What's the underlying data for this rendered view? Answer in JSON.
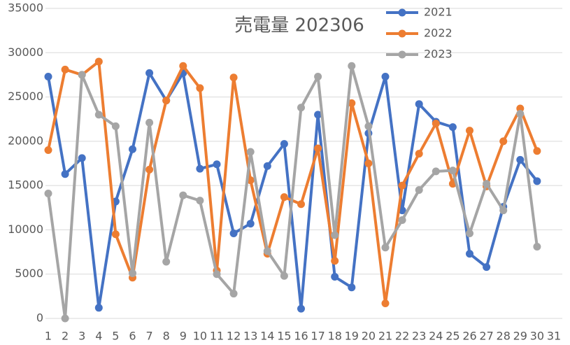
{
  "chart_data": {
    "type": "line",
    "title": "売電量 202306",
    "categories": [
      "1",
      "2",
      "3",
      "4",
      "5",
      "6",
      "7",
      "8",
      "9",
      "10",
      "11",
      "12",
      "13",
      "14",
      "15",
      "16",
      "17",
      "18",
      "19",
      "20",
      "21",
      "22",
      "23",
      "24",
      "25",
      "26",
      "27",
      "28",
      "29",
      "30",
      "31"
    ],
    "series": [
      {
        "name": "2021",
        "color": "#4472c4",
        "values": [
          27300,
          16300,
          18100,
          1200,
          13200,
          19100,
          27700,
          24600,
          27700,
          16900,
          17400,
          9600,
          10700,
          17200,
          19700,
          1100,
          23000,
          4700,
          3500,
          20900,
          27300,
          12200,
          24200,
          22200,
          21600,
          7300,
          5800,
          12600,
          17900,
          15500,
          null
        ]
      },
      {
        "name": "2022",
        "color": "#ed7d31",
        "values": [
          19000,
          28100,
          27500,
          29000,
          9500,
          4600,
          16800,
          24600,
          28500,
          26000,
          5400,
          27200,
          15600,
          7300,
          13700,
          12900,
          19200,
          6500,
          24300,
          17500,
          1700,
          15000,
          18600,
          22000,
          15200,
          21200,
          14900,
          20000,
          23700,
          18900,
          null
        ]
      },
      {
        "name": "2023",
        "color": "#a5a5a5",
        "values": [
          14100,
          0,
          27500,
          23000,
          21700,
          5100,
          22100,
          6400,
          13900,
          13300,
          5000,
          2800,
          18800,
          7600,
          4800,
          23800,
          27300,
          9400,
          28500,
          21700,
          8000,
          11100,
          14500,
          16600,
          16700,
          9600,
          15200,
          12200,
          23100,
          8100,
          null
        ]
      }
    ],
    "ylim": [
      0,
      35000
    ],
    "yticks": [
      0,
      5000,
      10000,
      15000,
      20000,
      25000,
      30000,
      35000
    ],
    "grid": true,
    "legend": "top-right"
  }
}
